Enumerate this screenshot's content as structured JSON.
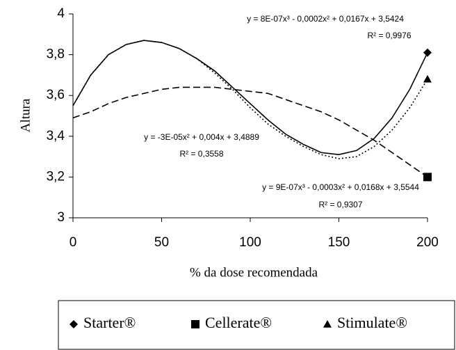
{
  "chart_data": {
    "type": "line",
    "x_label": "% da dose recomendada",
    "y_label": "Altura",
    "xlim": [
      0,
      200
    ],
    "xticks": [
      0,
      50,
      100,
      150,
      200
    ],
    "ylim": [
      3,
      4
    ],
    "yticks": [
      3,
      {
        "value": 3.2,
        "label": "3,2"
      },
      {
        "value": 3.4,
        "label": "3,4"
      },
      {
        "value": 3.6,
        "label": "3,6"
      },
      {
        "value": 3.8,
        "label": "3,8"
      },
      4
    ],
    "grid": false,
    "series": [
      {
        "name": "Starter®",
        "color": "#000000",
        "marker": "diamond",
        "dash": "solid",
        "x": [
          200
        ],
        "values": [
          3.81
        ],
        "trend": {
          "equation": "y = 8E-07x³ - 0,0002x² + 0,0167x + 3,5424",
          "r2": "R² = 0,9976",
          "x": [
            0,
            10,
            20,
            30,
            40,
            50,
            60,
            70,
            80,
            90,
            100,
            110,
            120,
            130,
            140,
            150,
            160,
            170,
            180,
            190,
            200
          ],
          "values": [
            3.55,
            3.7,
            3.8,
            3.85,
            3.87,
            3.86,
            3.83,
            3.78,
            3.72,
            3.64,
            3.56,
            3.48,
            3.41,
            3.36,
            3.32,
            3.31,
            3.33,
            3.39,
            3.49,
            3.63,
            3.81
          ]
        }
      },
      {
        "name": "Cellerate®",
        "color": "#000000",
        "marker": "square",
        "dash": "dashed",
        "x": [
          200
        ],
        "values": [
          3.2
        ],
        "trend": {
          "equation": "y = -3E-05x² + 0,004x + 3,4889",
          "r2": "R² = 0,3558",
          "x": [
            0,
            10,
            20,
            30,
            40,
            50,
            60,
            70,
            80,
            90,
            100,
            110,
            120,
            130,
            140,
            150,
            160,
            170,
            180,
            190,
            200
          ],
          "values": [
            3.49,
            3.52,
            3.56,
            3.59,
            3.61,
            3.63,
            3.64,
            3.64,
            3.64,
            3.63,
            3.62,
            3.61,
            3.58,
            3.55,
            3.52,
            3.48,
            3.43,
            3.38,
            3.32,
            3.26,
            3.2
          ]
        }
      },
      {
        "name": "Stimulate®",
        "color": "#000000",
        "marker": "triangle",
        "dash": "dotted",
        "x": [
          200
        ],
        "values": [
          3.68
        ],
        "trend": {
          "equation": "y = 9E-07x³ - 0,0003x² + 0,0168x + 3,5544",
          "r2": "R² = 0,9307",
          "x": [
            0,
            10,
            20,
            30,
            40,
            50,
            60,
            70,
            80,
            90,
            100,
            110,
            120,
            130,
            140,
            150,
            160,
            170,
            180,
            190,
            200
          ],
          "values": [
            3.55,
            3.7,
            3.8,
            3.85,
            3.87,
            3.86,
            3.83,
            3.78,
            3.71,
            3.63,
            3.54,
            3.46,
            3.4,
            3.35,
            3.31,
            3.29,
            3.3,
            3.35,
            3.43,
            3.54,
            3.68
          ]
        }
      }
    ]
  }
}
